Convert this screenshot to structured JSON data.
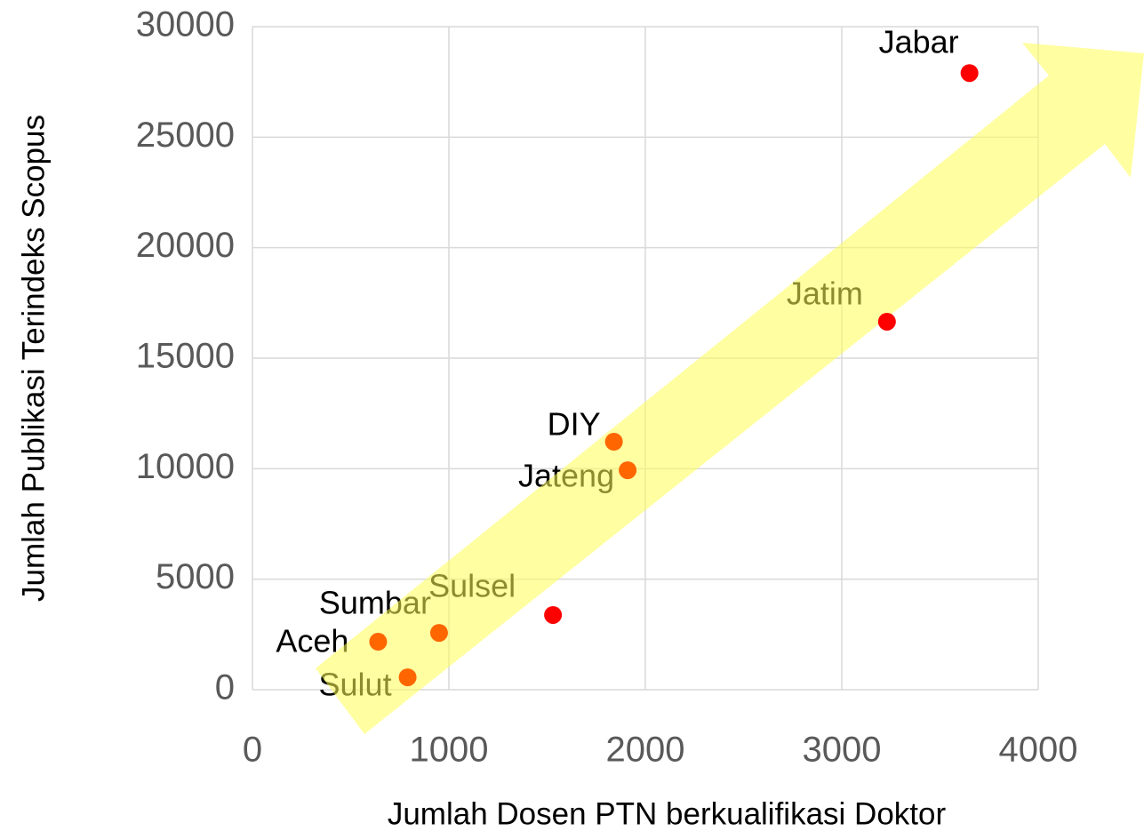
{
  "chart_data": {
    "type": "scatter",
    "xlabel": "Jumlah Dosen PTN berkualifikasi Doktor",
    "ylabel": "Jumlah Publikasi Terindeks Scopus",
    "labels": [
      "Jabar",
      "Jatim",
      "DIY",
      "Jateng",
      "Sulsel",
      "Sumbar",
      "Aceh",
      "Sulut"
    ],
    "x": [
      3650,
      3230,
      1840,
      1910,
      1530,
      950,
      640,
      790
    ],
    "values": [
      27900,
      16650,
      11220,
      9930,
      3380,
      2570,
      2170,
      560
    ],
    "colors": [
      "#ff0000",
      "#ff0000",
      "#ff6600",
      "#ff6600",
      "#ff0000",
      "#ff6600",
      "#ff6600",
      "#ff6600"
    ],
    "xlim": [
      0,
      4000
    ],
    "xticks": [
      0,
      1000,
      2000,
      3000,
      4000
    ],
    "ylim": [
      0,
      30000
    ],
    "yticks": [
      0,
      5000,
      10000,
      15000,
      20000,
      25000,
      30000
    ],
    "grid": true
  }
}
